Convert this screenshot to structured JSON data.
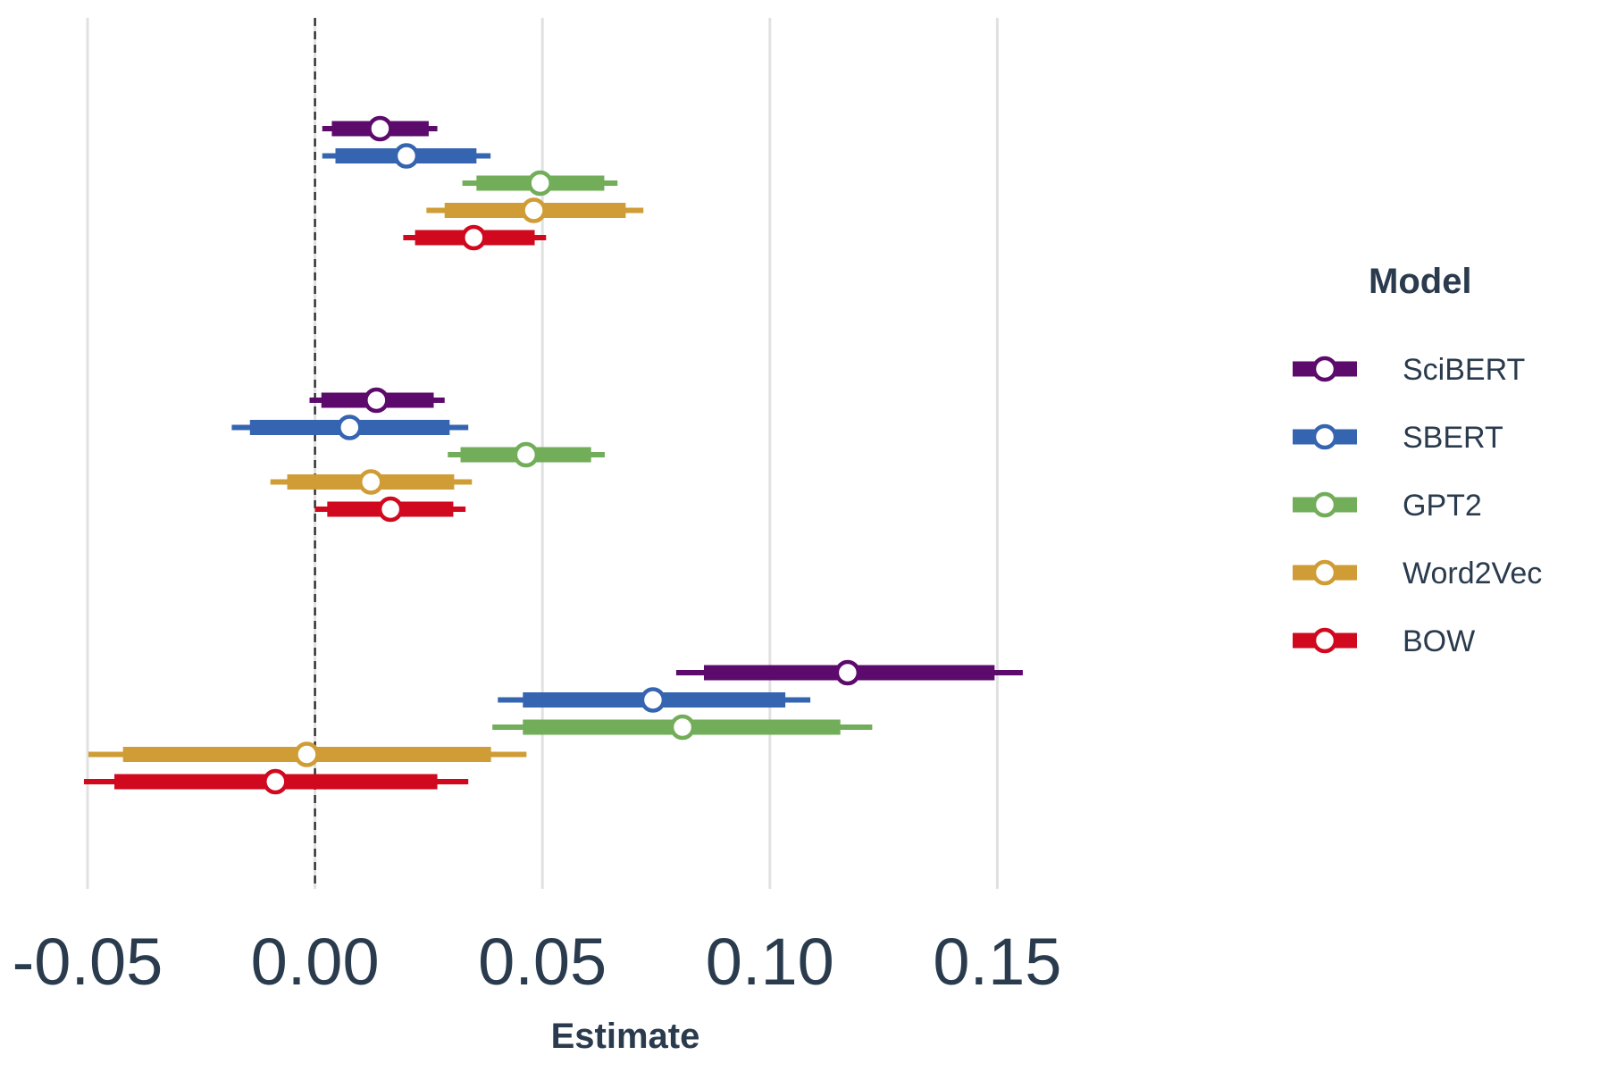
{
  "chart_data": {
    "type": "forest-interval",
    "title": "",
    "xlabel": "Estimate",
    "ylabel": "",
    "xlim": [
      -0.05,
      0.16
    ],
    "xticks": [
      -0.05,
      0.0,
      0.05,
      0.1,
      0.15
    ],
    "xtick_labels": [
      "-0.05",
      "0.00",
      "0.05",
      "0.10",
      "0.15"
    ],
    "reference_line": 0.0,
    "grid": "vertical major gridlines",
    "legend": {
      "title": "Model",
      "placement": "right"
    },
    "groups": 3,
    "series": [
      {
        "name": "SciBERT",
        "color": "#5c0a6b",
        "points": [
          {
            "group": 1,
            "estimate": 0.0143,
            "inner": [
              0.0037,
              0.025
            ],
            "outer": [
              0.0016,
              0.0269
            ]
          },
          {
            "group": 2,
            "estimate": 0.0135,
            "inner": [
              0.0014,
              0.0261
            ],
            "outer": [
              -0.0012,
              0.0285
            ]
          },
          {
            "group": 3,
            "estimate": 0.1171,
            "inner": [
              0.0855,
              0.1494
            ],
            "outer": [
              0.0794,
              0.1556
            ]
          }
        ]
      },
      {
        "name": "SBERT",
        "color": "#3565b0",
        "points": [
          {
            "group": 1,
            "estimate": 0.0201,
            "inner": [
              0.0045,
              0.0355
            ],
            "outer": [
              0.0016,
              0.0386
            ]
          },
          {
            "group": 2,
            "estimate": 0.0076,
            "inner": [
              -0.0143,
              0.0296
            ],
            "outer": [
              -0.0183,
              0.0337
            ]
          },
          {
            "group": 3,
            "estimate": 0.0743,
            "inner": [
              0.0457,
              0.1034
            ],
            "outer": [
              0.0402,
              0.1089
            ]
          }
        ]
      },
      {
        "name": "GPT2",
        "color": "#72ad5a",
        "points": [
          {
            "group": 1,
            "estimate": 0.0495,
            "inner": [
              0.0355,
              0.0636
            ],
            "outer": [
              0.0324,
              0.0665
            ]
          },
          {
            "group": 2,
            "estimate": 0.0464,
            "inner": [
              0.032,
              0.0607
            ],
            "outer": [
              0.0292,
              0.0637
            ]
          },
          {
            "group": 3,
            "estimate": 0.0808,
            "inner": [
              0.0457,
              0.1155
            ],
            "outer": [
              0.039,
              0.1225
            ]
          }
        ]
      },
      {
        "name": "Word2Vec",
        "color": "#cf9c35",
        "points": [
          {
            "group": 1,
            "estimate": 0.0481,
            "inner": [
              0.0285,
              0.0683
            ],
            "outer": [
              0.0245,
              0.0722
            ]
          },
          {
            "group": 2,
            "estimate": 0.0123,
            "inner": [
              -0.0061,
              0.0306
            ],
            "outer": [
              -0.0098,
              0.0345
            ]
          },
          {
            "group": 3,
            "estimate": -0.0018,
            "inner": [
              -0.0422,
              0.0387
            ],
            "outer": [
              -0.0498,
              0.0465
            ]
          }
        ]
      },
      {
        "name": "BOW",
        "color": "#d1091f",
        "points": [
          {
            "group": 1,
            "estimate": 0.0349,
            "inner": [
              0.022,
              0.0483
            ],
            "outer": [
              0.0194,
              0.0508
            ]
          },
          {
            "group": 2,
            "estimate": 0.0166,
            "inner": [
              0.0027,
              0.0304
            ],
            "outer": [
              0.0,
              0.0331
            ]
          },
          {
            "group": 3,
            "estimate": -0.0087,
            "inner": [
              -0.0441,
              0.0269
            ],
            "outer": [
              -0.0508,
              0.0337
            ]
          }
        ]
      }
    ]
  }
}
